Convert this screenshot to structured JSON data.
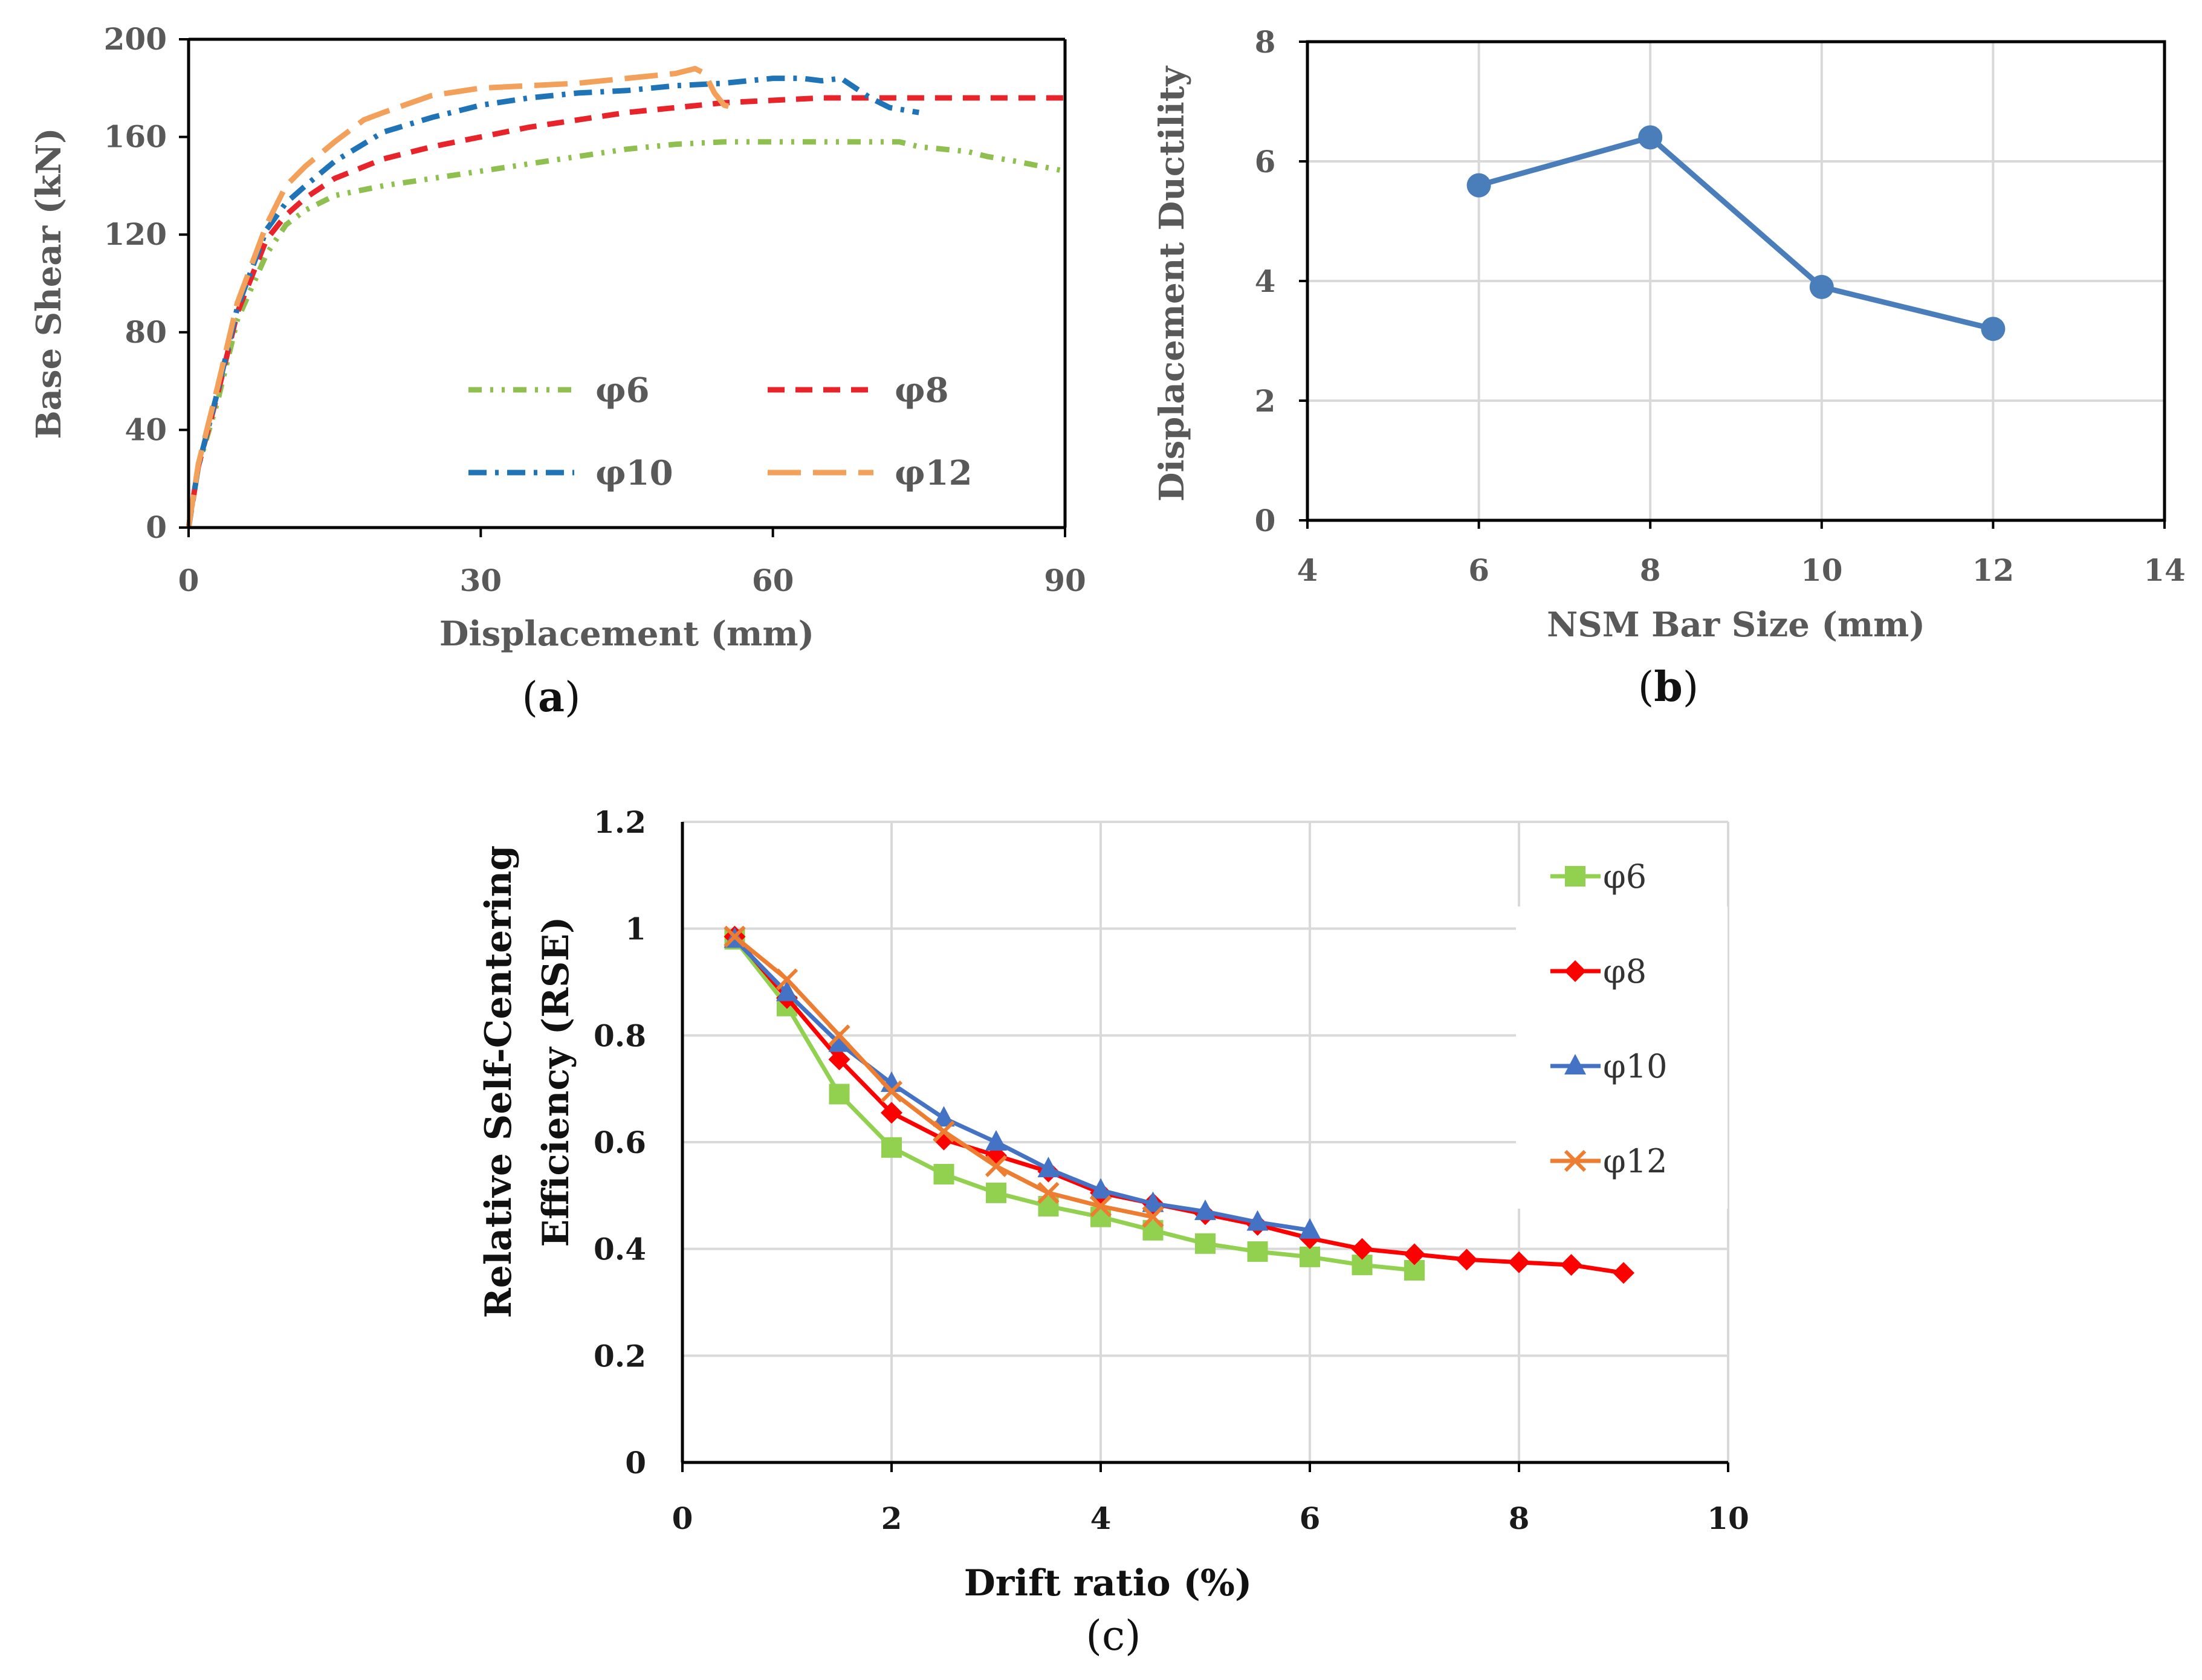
{
  "chart_data": [
    {
      "panel": "a",
      "type": "line",
      "title": "",
      "xlabel": "Displacement (mm)",
      "ylabel": "Base Shear (kN)",
      "xlim": [
        0,
        90
      ],
      "ylim": [
        0,
        200
      ],
      "xticks": [
        "0",
        "30",
        "60",
        "90"
      ],
      "yticks": [
        "0",
        "40",
        "80",
        "120",
        "160",
        "200"
      ],
      "legend_position": "bottom-right, inside plot",
      "series": [
        {
          "name": "φ6",
          "color": "#8fbf4f",
          "dash": "dash-dot-dot",
          "x": [
            0,
            1,
            3,
            5,
            8,
            10,
            12,
            15,
            20,
            25,
            30,
            35,
            40,
            45,
            50,
            55,
            60,
            65,
            70,
            73,
            75,
            80,
            82,
            85,
            90
          ],
          "y": [
            0,
            25,
            52,
            85,
            112,
            124,
            130,
            136,
            140,
            143,
            146,
            149,
            152,
            155,
            157,
            158,
            158,
            158,
            158,
            158,
            156,
            154,
            152,
            150,
            146
          ]
        },
        {
          "name": "φ8",
          "color": "#e8232a",
          "dash": "dash",
          "x": [
            0,
            1,
            3,
            5,
            8,
            10,
            12,
            15,
            20,
            25,
            30,
            35,
            40,
            45,
            50,
            55,
            60,
            65,
            70,
            75,
            80,
            85,
            90
          ],
          "y": [
            0,
            25,
            55,
            88,
            118,
            128,
            135,
            143,
            151,
            156,
            160,
            164,
            167,
            170,
            172,
            174,
            175,
            176,
            176,
            176,
            176,
            176,
            176
          ]
        },
        {
          "name": "φ10",
          "color": "#1f73b7",
          "dash": "dash-dot",
          "x": [
            0,
            1,
            3,
            5,
            8,
            10,
            12,
            15,
            20,
            25,
            30,
            35,
            40,
            45,
            50,
            55,
            60,
            63,
            65,
            67,
            70,
            72,
            75
          ],
          "y": [
            0,
            25,
            56,
            90,
            122,
            133,
            140,
            150,
            162,
            168,
            173,
            176,
            178,
            179,
            181,
            182,
            184,
            184,
            183,
            184,
            176,
            172,
            170
          ]
        },
        {
          "name": "φ12",
          "color": "#f2a05a",
          "dash": "long-dash",
          "x": [
            0,
            1,
            3,
            5,
            8,
            10,
            12,
            15,
            18,
            20,
            25,
            30,
            35,
            40,
            45,
            50,
            52,
            53,
            54,
            55,
            56
          ],
          "y": [
            0,
            26,
            58,
            92,
            124,
            140,
            148,
            158,
            167,
            170,
            177,
            180,
            181,
            182,
            184,
            186,
            188,
            186,
            178,
            173,
            172
          ]
        }
      ]
    },
    {
      "panel": "b",
      "type": "line",
      "title": "",
      "xlabel": "NSM Bar Size (mm)",
      "ylabel": "Displacement Ductility",
      "xlim": [
        4,
        14
      ],
      "ylim": [
        0,
        8
      ],
      "xticks": [
        "4",
        "6",
        "8",
        "10",
        "12",
        "14"
      ],
      "yticks": [
        "0",
        "2",
        "4",
        "6",
        "8"
      ],
      "grid": true,
      "series": [
        {
          "name": "Displacement Ductility",
          "color": "#4a7ebb",
          "x": [
            6,
            8,
            10,
            12
          ],
          "y": [
            5.6,
            6.4,
            3.9,
            3.2
          ]
        }
      ]
    },
    {
      "panel": "c",
      "type": "line",
      "title": "",
      "xlabel": "Drift ratio (%)",
      "ylabel_line1": "Relative Self-Centering",
      "ylabel_line2": "Efficiency (RSE)",
      "xlim": [
        0,
        10
      ],
      "ylim": [
        0,
        1.2
      ],
      "xticks": [
        "0",
        "2",
        "4",
        "6",
        "8",
        "10"
      ],
      "yticks": [
        "0",
        "0.2",
        "0.4",
        "0.6",
        "0.8",
        "1",
        "1.2"
      ],
      "grid": true,
      "legend_position": "right, inside plot",
      "series": [
        {
          "name": "φ6",
          "color": "#92d050",
          "marker": "square",
          "x": [
            0.5,
            1,
            1.5,
            2,
            2.5,
            3,
            3.5,
            4,
            4.5,
            5,
            5.5,
            6,
            6.5,
            7
          ],
          "y": [
            0.98,
            0.855,
            0.69,
            0.59,
            0.54,
            0.505,
            0.48,
            0.46,
            0.435,
            0.41,
            0.395,
            0.385,
            0.37,
            0.36
          ]
        },
        {
          "name": "φ8",
          "color": "#ff0000",
          "marker": "diamond",
          "x": [
            0.5,
            1,
            1.5,
            2,
            2.5,
            3,
            3.5,
            4,
            4.5,
            5,
            5.5,
            6,
            6.5,
            7,
            7.5,
            8,
            8.5,
            9
          ],
          "y": [
            0.985,
            0.87,
            0.755,
            0.655,
            0.605,
            0.575,
            0.545,
            0.505,
            0.485,
            0.465,
            0.445,
            0.42,
            0.4,
            0.39,
            0.38,
            0.375,
            0.37,
            0.355
          ]
        },
        {
          "name": "φ10",
          "color": "#4472c4",
          "marker": "triangle",
          "x": [
            0.5,
            1,
            1.5,
            2,
            2.5,
            3,
            3.5,
            4,
            4.5,
            5,
            5.5,
            6
          ],
          "y": [
            0.98,
            0.88,
            0.785,
            0.71,
            0.645,
            0.6,
            0.55,
            0.51,
            0.485,
            0.47,
            0.45,
            0.435
          ]
        },
        {
          "name": "φ12",
          "color": "#ed7d31",
          "marker": "x",
          "x": [
            0.5,
            1,
            1.5,
            2,
            2.5,
            3,
            3.5,
            4,
            4.5
          ],
          "y": [
            0.985,
            0.905,
            0.8,
            0.695,
            0.62,
            0.555,
            0.505,
            0.48,
            0.46
          ]
        }
      ]
    }
  ],
  "panel_labels": [
    "(a)",
    "(b)",
    "(c)"
  ]
}
